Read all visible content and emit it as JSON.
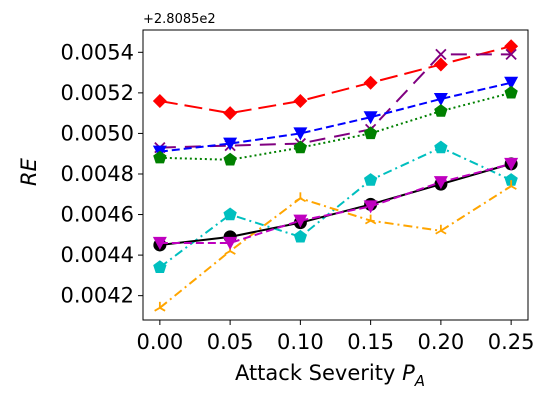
{
  "chart_data": {
    "type": "line",
    "title": "",
    "xlabel": "Attack Severity",
    "xlabel_sub": "A",
    "ylabel": "RE",
    "offset_text": "+2.8085e2",
    "x": [
      0.0,
      0.05,
      0.1,
      0.15,
      0.2,
      0.25
    ],
    "xticks": [
      "0.00",
      "0.05",
      "0.10",
      "0.15",
      "0.20",
      "0.25"
    ],
    "yticks": [
      "0.0042",
      "0.0044",
      "0.0046",
      "0.0048",
      "0.0050",
      "0.0052",
      "0.0054"
    ],
    "xlim": [
      -0.012,
      0.262
    ],
    "ylim": [
      0.00408,
      0.00551
    ],
    "grid": false,
    "series": [
      {
        "values": [
          0.00516,
          0.0051,
          0.00516,
          0.00525,
          0.00534,
          0.00543
        ],
        "color": "#ff0000",
        "dash": "18,7",
        "marker": "diamond"
      },
      {
        "values": [
          0.00493,
          0.00494,
          0.00495,
          0.00502,
          0.00539,
          0.00539
        ],
        "color": "#800080",
        "dash": "16,9",
        "marker": "x"
      },
      {
        "values": [
          0.00491,
          0.00495,
          0.005,
          0.00508,
          0.00517,
          0.00525
        ],
        "color": "#0000ff",
        "dash": "8,4",
        "marker": "triangle-down"
      },
      {
        "values": [
          0.00488,
          0.00487,
          0.00493,
          0.005,
          0.00511,
          0.0052
        ],
        "color": "#008000",
        "dash": "2,3",
        "marker": "pentagon"
      },
      {
        "values": [
          0.00434,
          0.0046,
          0.00449,
          0.00477,
          0.00493,
          0.00477
        ],
        "color": "#00bfbf",
        "dash": "9,4,2,4",
        "marker": "pentagon"
      },
      {
        "values": [
          0.00414,
          0.00442,
          0.00468,
          0.00457,
          0.00452,
          0.00474
        ],
        "color": "#ffa500",
        "dash": "9,4,2,4",
        "marker": "tri-up"
      },
      {
        "values": [
          0.00445,
          0.00449,
          0.00456,
          0.00465,
          0.00475,
          0.00485
        ],
        "color": "#000000",
        "dash": "",
        "marker": "circle"
      },
      {
        "values": [
          0.00446,
          0.00446,
          0.00457,
          0.00464,
          0.00476,
          0.00485
        ],
        "color": "#bf00bf",
        "dash": "8,4",
        "marker": "triangle-down"
      }
    ]
  }
}
